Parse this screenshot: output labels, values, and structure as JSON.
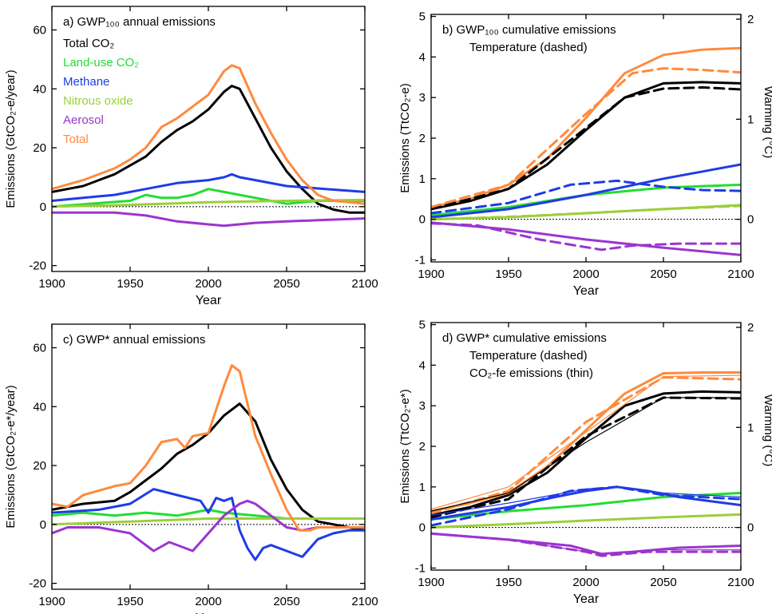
{
  "figure": {
    "x_axis_label": "Year",
    "x_ticks": [
      1900,
      1950,
      2000,
      2050,
      2100
    ],
    "x_range": [
      1900,
      2100
    ],
    "legend_items": [
      {
        "label": "Total CO₂",
        "color": "#000000"
      },
      {
        "label": "Land-use CO₂",
        "color": "#22dd33"
      },
      {
        "label": "Methane",
        "color": "#1f3be6"
      },
      {
        "label": "Nitrous oxide",
        "color": "#9bcf3a"
      },
      {
        "label": "Aerosol",
        "color": "#9b35cf"
      },
      {
        "label": "Total",
        "color": "#ff8a3d"
      }
    ]
  },
  "chart_data": [
    {
      "id": "a",
      "type": "line",
      "panel_title": "a)  GWP₁₀₀ annual emissions",
      "ylabel": "Emissions (GtCO₂-e/year)",
      "ylim": [
        -22,
        68
      ],
      "y_ticks": [
        -20,
        0,
        20,
        40,
        60
      ],
      "zero_line": "dotted",
      "series": [
        {
          "name": "Total CO₂",
          "color": "#000000",
          "x": [
            1900,
            1910,
            1920,
            1930,
            1940,
            1950,
            1960,
            1970,
            1980,
            1990,
            2000,
            2010,
            2015,
            2020,
            2030,
            2040,
            2050,
            2060,
            2070,
            2080,
            2090,
            2100
          ],
          "y": [
            5,
            6,
            7,
            9,
            11,
            14,
            17,
            22,
            26,
            29,
            33,
            39,
            41,
            40,
            30,
            20,
            12,
            6,
            1,
            -1,
            -2,
            -2
          ]
        },
        {
          "name": "Land-use CO₂",
          "color": "#22dd33",
          "x": [
            1900,
            1950,
            1960,
            1970,
            1980,
            1990,
            2000,
            2010,
            2020,
            2030,
            2050,
            2070,
            2100
          ],
          "y": [
            0,
            2,
            4,
            3,
            3,
            4,
            6,
            5,
            4,
            3,
            1,
            2,
            2
          ]
        },
        {
          "name": "Methane",
          "color": "#1f3be6",
          "x": [
            1900,
            1920,
            1940,
            1960,
            1980,
            2000,
            2010,
            2015,
            2020,
            2030,
            2050,
            2075,
            2100
          ],
          "y": [
            2,
            3,
            4,
            6,
            8,
            9,
            10,
            11,
            10,
            9,
            7,
            6,
            5
          ]
        },
        {
          "name": "Nitrous oxide",
          "color": "#9bcf3a",
          "x": [
            1900,
            1950,
            2000,
            2050,
            2100
          ],
          "y": [
            0,
            0.6,
            1.5,
            2,
            2.3
          ]
        },
        {
          "name": "Aerosol",
          "color": "#9b35cf",
          "x": [
            1900,
            1940,
            1960,
            1980,
            2000,
            2010,
            2030,
            2050,
            2075,
            2100
          ],
          "y": [
            -2,
            -2,
            -3,
            -5,
            -6,
            -6.5,
            -5.5,
            -5,
            -4.5,
            -4
          ]
        },
        {
          "name": "Total",
          "color": "#ff8a3d",
          "x": [
            1900,
            1920,
            1940,
            1950,
            1960,
            1970,
            1980,
            1990,
            2000,
            2010,
            2015,
            2020,
            2030,
            2040,
            2050,
            2060,
            2070,
            2080,
            2090,
            2100
          ],
          "y": [
            6,
            9,
            13,
            16,
            20,
            27,
            30,
            34,
            38,
            46,
            48,
            47,
            35,
            25,
            16,
            9,
            4,
            2,
            1.5,
            1
          ]
        }
      ]
    },
    {
      "id": "b",
      "type": "line",
      "panel_title": "b)  GWP₁₀₀ cumulative emissions",
      "panel_subtitles": [
        "Temperature (dashed)"
      ],
      "ylabel": "Emissions (TtCO₂-e)",
      "ylim": [
        -1.05,
        5.05
      ],
      "y_ticks": [
        -1,
        0,
        1,
        2,
        3,
        4,
        5
      ],
      "y2label": "Warming (°C)",
      "y2_ticks": [
        0,
        1,
        2
      ],
      "zero_line": "dotted",
      "series": [
        {
          "name": "Total CO₂",
          "color": "#000000",
          "x": [
            1900,
            1925,
            1950,
            1975,
            2000,
            2025,
            2050,
            2075,
            2100
          ],
          "y": [
            0.25,
            0.45,
            0.75,
            1.35,
            2.2,
            3.0,
            3.35,
            3.38,
            3.35
          ]
        },
        {
          "name": "Land-use CO₂",
          "color": "#22dd33",
          "x": [
            1900,
            1950,
            2000,
            2050,
            2100
          ],
          "y": [
            0.1,
            0.3,
            0.6,
            0.78,
            0.85
          ]
        },
        {
          "name": "Methane",
          "color": "#1f3be6",
          "x": [
            1900,
            1950,
            2000,
            2050,
            2100
          ],
          "y": [
            0.05,
            0.25,
            0.6,
            1.0,
            1.35
          ]
        },
        {
          "name": "Nitrous oxide",
          "color": "#9bcf3a",
          "x": [
            1900,
            1950,
            2000,
            2050,
            2100
          ],
          "y": [
            0,
            0.05,
            0.15,
            0.25,
            0.35
          ]
        },
        {
          "name": "Aerosol",
          "color": "#9b35cf",
          "x": [
            1900,
            1950,
            2000,
            2050,
            2100
          ],
          "y": [
            -0.08,
            -0.25,
            -0.5,
            -0.7,
            -0.88
          ]
        },
        {
          "name": "Total",
          "color": "#ff8a3d",
          "x": [
            1900,
            1925,
            1950,
            1975,
            2000,
            2025,
            2050,
            2075,
            2100
          ],
          "y": [
            0.3,
            0.5,
            0.85,
            1.5,
            2.5,
            3.6,
            4.05,
            4.18,
            4.22
          ]
        },
        {
          "name": "Total CO₂",
          "color": "#000000",
          "dashed": true,
          "x": [
            1900,
            1950,
            2000,
            2025,
            2050,
            2075,
            2100
          ],
          "y": [
            0.25,
            0.75,
            2.25,
            3.0,
            3.22,
            3.25,
            3.2
          ]
        },
        {
          "name": "Methane",
          "color": "#1f3be6",
          "dashed": true,
          "x": [
            1900,
            1950,
            1990,
            2020,
            2050,
            2075,
            2100
          ],
          "y": [
            0.15,
            0.4,
            0.85,
            0.95,
            0.8,
            0.72,
            0.7
          ]
        },
        {
          "name": "Nitrous oxide",
          "color": "#9bcf3a",
          "dashed": true,
          "x": [
            1900,
            1950,
            2000,
            2050,
            2100
          ],
          "y": [
            0,
            0.06,
            0.15,
            0.25,
            0.33
          ]
        },
        {
          "name": "Aerosol",
          "color": "#9b35cf",
          "dashed": true,
          "x": [
            1900,
            1930,
            1970,
            2010,
            2030,
            2060,
            2100
          ],
          "y": [
            -0.1,
            -0.15,
            -0.5,
            -0.75,
            -0.65,
            -0.6,
            -0.6
          ]
        },
        {
          "name": "Total",
          "color": "#ff8a3d",
          "dashed": true,
          "x": [
            1900,
            1950,
            2000,
            2030,
            2050,
            2075,
            2100
          ],
          "y": [
            0.3,
            0.85,
            2.6,
            3.6,
            3.72,
            3.68,
            3.62
          ]
        }
      ]
    },
    {
      "id": "c",
      "type": "line",
      "panel_title": "c)  GWP* annual emissions",
      "ylabel": "Emissions (GtCO₂-e*/year)",
      "ylim": [
        -22,
        68
      ],
      "y_ticks": [
        -20,
        0,
        20,
        40,
        60
      ],
      "zero_line": "dotted",
      "series": [
        {
          "name": "Total CO₂",
          "color": "#000000",
          "x": [
            1900,
            1920,
            1940,
            1950,
            1960,
            1970,
            1980,
            1990,
            2000,
            2010,
            2020,
            2030,
            2040,
            2050,
            2060,
            2070,
            2080,
            2090,
            2100
          ],
          "y": [
            5,
            7,
            8,
            11,
            15,
            19,
            24,
            27,
            31,
            37,
            41,
            35,
            22,
            12,
            5,
            1,
            0,
            -1,
            -2
          ]
        },
        {
          "name": "Land-use CO₂",
          "color": "#22dd33",
          "x": [
            1900,
            1920,
            1940,
            1960,
            1980,
            1990,
            2000,
            2010,
            2030,
            2050,
            2100
          ],
          "y": [
            3,
            4,
            3,
            4,
            3,
            4,
            5,
            4,
            3,
            2,
            2
          ]
        },
        {
          "name": "Methane",
          "color": "#1f3be6",
          "x": [
            1900,
            1930,
            1950,
            1965,
            1980,
            1995,
            2000,
            2005,
            2010,
            2015,
            2020,
            2025,
            2030,
            2035,
            2040,
            2050,
            2060,
            2070,
            2080,
            2090,
            2100
          ],
          "y": [
            4,
            5,
            7,
            12,
            10,
            8,
            4,
            9,
            8,
            9,
            -2,
            -8,
            -12,
            -8,
            -7,
            -9,
            -11,
            -5,
            -3,
            -2,
            -2
          ]
        },
        {
          "name": "Nitrous oxide",
          "color": "#9bcf3a",
          "x": [
            1900,
            1950,
            2000,
            2050,
            2100
          ],
          "y": [
            0,
            1,
            2,
            2,
            2
          ]
        },
        {
          "name": "Aerosol",
          "color": "#9b35cf",
          "x": [
            1900,
            1910,
            1930,
            1950,
            1965,
            1975,
            1990,
            2000,
            2010,
            2020,
            2025,
            2030,
            2040,
            2050,
            2060,
            2070,
            2080,
            2100
          ],
          "y": [
            -3,
            -1,
            -1,
            -3,
            -9,
            -6,
            -9,
            -3,
            3,
            7,
            8,
            7,
            3,
            -1,
            -2,
            -1,
            -1,
            -1
          ]
        },
        {
          "name": "Total",
          "color": "#ff8a3d",
          "x": [
            1900,
            1910,
            1920,
            1940,
            1950,
            1960,
            1970,
            1980,
            1985,
            1990,
            2000,
            2010,
            2015,
            2020,
            2030,
            2040,
            2050,
            2058,
            2065,
            2070,
            2080,
            2090,
            2100
          ],
          "y": [
            7,
            6,
            10,
            13,
            14,
            20,
            28,
            29,
            26,
            30,
            31,
            47,
            54,
            52,
            30,
            17,
            5,
            -2,
            -2,
            -1,
            -1,
            -1,
            -1
          ]
        }
      ]
    },
    {
      "id": "d",
      "type": "line",
      "panel_title": "d)  GWP* cumulative emissions",
      "panel_subtitles": [
        "Temperature (dashed)",
        "CO₂-fe emissions (thin)"
      ],
      "ylabel": "Emissions (TtCO₂-e*)",
      "ylim": [
        -1.05,
        5.05
      ],
      "y_ticks": [
        -1,
        0,
        1,
        2,
        3,
        4,
        5
      ],
      "y2label": "Warming (°C)",
      "y2_ticks": [
        0,
        1,
        2
      ],
      "zero_line": "dotted",
      "series": [
        {
          "name": "Total CO₂",
          "color": "#000000",
          "x": [
            1900,
            1925,
            1950,
            1975,
            2000,
            2025,
            2050,
            2075,
            2100
          ],
          "y": [
            0.3,
            0.5,
            0.8,
            1.35,
            2.2,
            3.0,
            3.3,
            3.35,
            3.33
          ]
        },
        {
          "name": "Land-use CO₂",
          "color": "#22dd33",
          "x": [
            1900,
            1950,
            2000,
            2050,
            2100
          ],
          "y": [
            0.2,
            0.4,
            0.55,
            0.75,
            0.85
          ]
        },
        {
          "name": "Methane",
          "color": "#1f3be6",
          "x": [
            1900,
            1950,
            1980,
            2000,
            2020,
            2040,
            2060,
            2080,
            2100
          ],
          "y": [
            0.2,
            0.5,
            0.75,
            0.9,
            1.0,
            0.9,
            0.75,
            0.65,
            0.55
          ]
        },
        {
          "name": "Nitrous oxide",
          "color": "#9bcf3a",
          "x": [
            1900,
            1950,
            2000,
            2050,
            2100
          ],
          "y": [
            0,
            0.08,
            0.17,
            0.25,
            0.32
          ]
        },
        {
          "name": "Aerosol",
          "color": "#9b35cf",
          "x": [
            1900,
            1950,
            1990,
            2010,
            2030,
            2060,
            2100
          ],
          "y": [
            -0.15,
            -0.3,
            -0.45,
            -0.65,
            -0.6,
            -0.5,
            -0.45
          ]
        },
        {
          "name": "Total",
          "color": "#ff8a3d",
          "x": [
            1900,
            1925,
            1950,
            1975,
            2000,
            2025,
            2050,
            2075,
            2100
          ],
          "y": [
            0.4,
            0.6,
            0.85,
            1.5,
            2.4,
            3.3,
            3.8,
            3.82,
            3.82
          ]
        },
        {
          "name": "Total CO₂",
          "color": "#000000",
          "dashed": true,
          "x": [
            1900,
            1950,
            2000,
            2050,
            2100
          ],
          "y": [
            0.25,
            0.7,
            2.25,
            3.2,
            3.18
          ]
        },
        {
          "name": "Methane",
          "color": "#1f3be6",
          "dashed": true,
          "x": [
            1900,
            1950,
            1990,
            2020,
            2050,
            2100
          ],
          "y": [
            0.05,
            0.45,
            0.9,
            1.0,
            0.8,
            0.7
          ]
        },
        {
          "name": "Aerosol",
          "color": "#9b35cf",
          "dashed": true,
          "x": [
            1900,
            1950,
            2000,
            2010,
            2040,
            2100
          ],
          "y": [
            -0.15,
            -0.3,
            -0.6,
            -0.7,
            -0.6,
            -0.6
          ]
        },
        {
          "name": "Total",
          "color": "#ff8a3d",
          "dashed": true,
          "x": [
            1900,
            1950,
            2000,
            2050,
            2100
          ],
          "y": [
            0.35,
            0.9,
            2.6,
            3.7,
            3.65
          ]
        },
        {
          "name": "Total CO₂",
          "color": "#000000",
          "thin": true,
          "x": [
            1900,
            1950,
            2000,
            2050,
            2100
          ],
          "y": [
            0.4,
            0.85,
            2.1,
            3.2,
            3.2
          ]
        },
        {
          "name": "Methane",
          "color": "#1f3be6",
          "thin": true,
          "x": [
            1900,
            1950,
            2000,
            2020,
            2050,
            2100
          ],
          "y": [
            0.3,
            0.6,
            0.95,
            1.0,
            0.85,
            0.75
          ]
        },
        {
          "name": "Aerosol",
          "color": "#9b35cf",
          "thin": true,
          "x": [
            1900,
            1950,
            2000,
            2010,
            2050,
            2100
          ],
          "y": [
            -0.15,
            -0.3,
            -0.6,
            -0.65,
            -0.55,
            -0.55
          ]
        },
        {
          "name": "Total",
          "color": "#ff8a3d",
          "thin": true,
          "x": [
            1900,
            1950,
            2000,
            2050,
            2100
          ],
          "y": [
            0.45,
            1.0,
            2.35,
            3.72,
            3.75
          ]
        }
      ]
    }
  ]
}
